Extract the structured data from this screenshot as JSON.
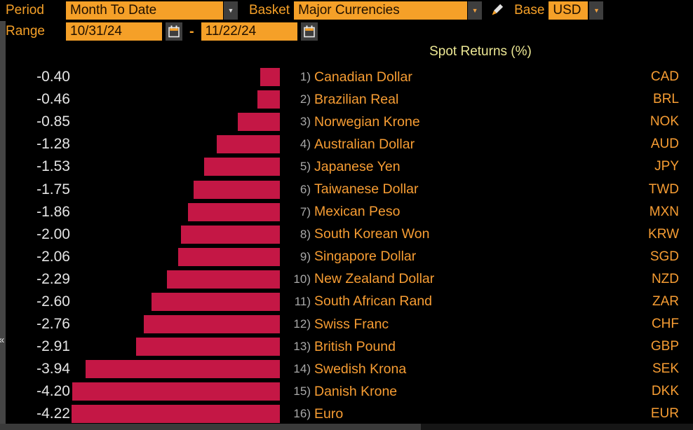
{
  "toolbar": {
    "period_label": "Period",
    "period_value": "Month To Date",
    "basket_label": "Basket",
    "basket_value": "Major Currencies",
    "base_label": "Base",
    "base_value": "USD",
    "range_label": "Range",
    "range_start": "10/31/24",
    "range_separator": "-",
    "range_end": "11/22/24",
    "dropdown_glyph": "▼"
  },
  "left_scrollbar": {
    "collapse_glyph": "«"
  },
  "chart_data": {
    "type": "bar",
    "orientation": "horizontal",
    "title": "Spot Returns (%)",
    "bar_color": "#c41745",
    "xlim": [
      -4.22,
      0
    ],
    "grid": false,
    "rows": [
      {
        "rank": "1)",
        "name": "Canadian Dollar",
        "code": "CAD",
        "value": -0.4,
        "label": "-0.40"
      },
      {
        "rank": "2)",
        "name": "Brazilian Real",
        "code": "BRL",
        "value": -0.46,
        "label": "-0.46"
      },
      {
        "rank": "3)",
        "name": "Norwegian Krone",
        "code": "NOK",
        "value": -0.85,
        "label": "-0.85"
      },
      {
        "rank": "4)",
        "name": "Australian Dollar",
        "code": "AUD",
        "value": -1.28,
        "label": "-1.28"
      },
      {
        "rank": "5)",
        "name": "Japanese Yen",
        "code": "JPY",
        "value": -1.53,
        "label": "-1.53"
      },
      {
        "rank": "6)",
        "name": "Taiwanese Dollar",
        "code": "TWD",
        "value": -1.75,
        "label": "-1.75"
      },
      {
        "rank": "7)",
        "name": "Mexican Peso",
        "code": "MXN",
        "value": -1.86,
        "label": "-1.86"
      },
      {
        "rank": "8)",
        "name": "South Korean Won",
        "code": "KRW",
        "value": -2.0,
        "label": "-2.00"
      },
      {
        "rank": "9)",
        "name": "Singapore Dollar",
        "code": "SGD",
        "value": -2.06,
        "label": "-2.06"
      },
      {
        "rank": "10)",
        "name": "New Zealand Dollar",
        "code": "NZD",
        "value": -2.29,
        "label": "-2.29"
      },
      {
        "rank": "11)",
        "name": "South African Rand",
        "code": "ZAR",
        "value": -2.6,
        "label": "-2.60"
      },
      {
        "rank": "12)",
        "name": "Swiss Franc",
        "code": "CHF",
        "value": -2.76,
        "label": "-2.76"
      },
      {
        "rank": "13)",
        "name": "British Pound",
        "code": "GBP",
        "value": -2.91,
        "label": "-2.91"
      },
      {
        "rank": "14)",
        "name": "Swedish Krona",
        "code": "SEK",
        "value": -3.94,
        "label": "-3.94"
      },
      {
        "rank": "15)",
        "name": "Danish Krone",
        "code": "DKK",
        "value": -4.2,
        "label": "-4.20"
      },
      {
        "rank": "16)",
        "name": "Euro",
        "code": "EUR",
        "value": -4.22,
        "label": "-4.22"
      }
    ]
  }
}
